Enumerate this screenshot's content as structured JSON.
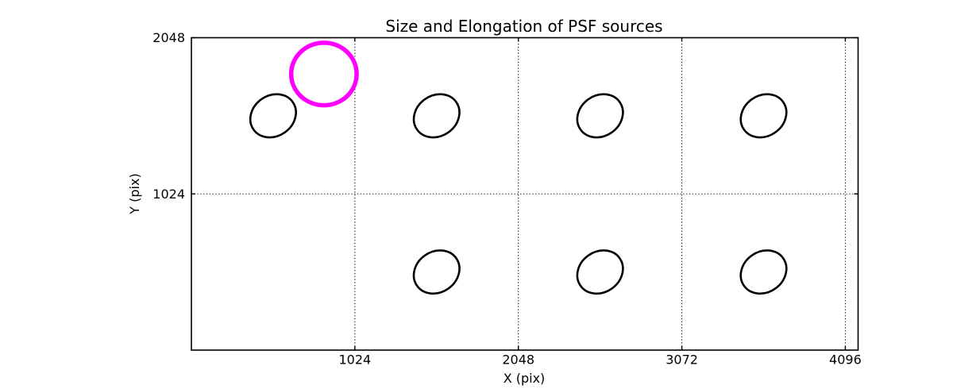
{
  "figure": {
    "background": "#ffffff"
  },
  "colors": {
    "axis": "#000000",
    "grid": "#000000",
    "source_ellipse": "#000000",
    "reference_circle": "#ff00ff"
  },
  "chart_data": {
    "type": "scatter",
    "title": "Size and Elongation of PSF sources",
    "xlabel": "X (pix)",
    "ylabel": "Y (pix)",
    "xlim": [
      0,
      4176
    ],
    "ylim": [
      0,
      2048
    ],
    "xticks": [
      1024,
      2048,
      3072,
      4096
    ],
    "yticks": [
      1024,
      2048
    ],
    "grid": {
      "style": "dotted",
      "on": true,
      "color": "#000000"
    },
    "legend": "none",
    "ellipse_shape": {
      "a": 150,
      "b": 133,
      "angle_deg": 35
    },
    "sources": [
      {
        "x": 512,
        "y": 1536
      },
      {
        "x": 1536,
        "y": 1536
      },
      {
        "x": 2560,
        "y": 1536
      },
      {
        "x": 3584,
        "y": 1536
      },
      {
        "x": 1536,
        "y": 512
      },
      {
        "x": 2560,
        "y": 512
      },
      {
        "x": 3584,
        "y": 512
      }
    ],
    "reference_circle": {
      "x": 830,
      "y": 1810,
      "r": 205,
      "color": "#ff00ff"
    }
  }
}
